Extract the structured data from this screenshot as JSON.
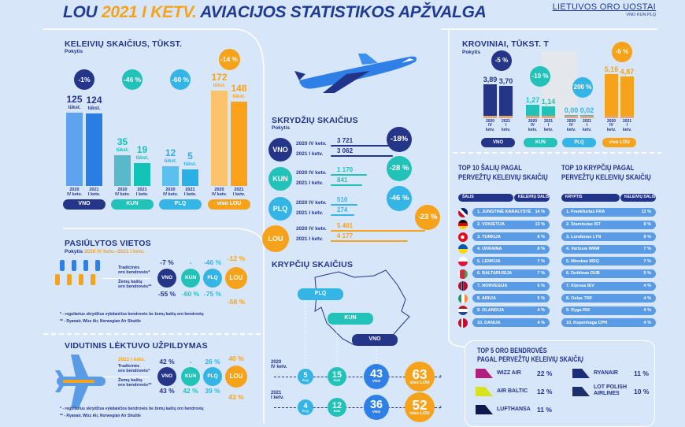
{
  "header": {
    "title_part1": "LOU",
    "title_part2": "2021 I KETV.",
    "title_part3": "AVIACIJOS STATISTIKOS APŽVALGA",
    "logo_text": "LIETUVOS ORO UOSTAI",
    "logo_sub": "VNO KUN PLQ"
  },
  "colors": {
    "vno": "#253689",
    "kun": "#22c2b8",
    "plq": "#35b4e6",
    "lou": "#f7a21b",
    "vno_bright": "#2f80e6"
  },
  "passengers": {
    "title": "KELEIVIŲ SKAIČIUS, TŪKST.",
    "subtitle": "Pokytis",
    "unit": "tūkst.",
    "year_a": "2020",
    "q_a": "IV ketv.",
    "year_b": "2021",
    "q_b": "I ketv.",
    "airports": [
      {
        "label": "VNO",
        "change": "-1%",
        "v2020": 125,
        "v2021": 124
      },
      {
        "label": "KUN",
        "change": "-46 %",
        "v2020": 35,
        "v2021": 19
      },
      {
        "label": "PLQ",
        "change": "-60 %",
        "v2020": 12,
        "v2021": 5
      },
      {
        "label": "viso LOU",
        "change": "-14 %",
        "v2020": 172,
        "v2021": 148
      }
    ]
  },
  "cargo": {
    "title": "KROVINIAI, TŪKST. T",
    "subtitle": "Pokytis",
    "year_a": "2020",
    "q_a": "IV",
    "k_a": "ketv.",
    "year_b": "2021",
    "q_b": "I",
    "k_b": "ketv.",
    "airports": [
      {
        "label": "VNO",
        "change": "-5 %",
        "v2020": "3,89",
        "v2021": "3,70",
        "n2020": 3.89,
        "n2021": 3.7
      },
      {
        "label": "KUN",
        "change": "-10 %",
        "v2020": "1,27",
        "v2021": "1,14",
        "n2020": 1.27,
        "n2021": 1.14
      },
      {
        "label": "PLQ",
        "change": "200 %",
        "v2020": "0,00",
        "v2021": "0,02",
        "n2020": 0.0,
        "n2021": 0.02
      },
      {
        "label": "viso LOU",
        "change": "-6 %",
        "v2020": "5,16",
        "v2021": "4,87",
        "n2020": 5.16,
        "n2021": 4.87
      }
    ]
  },
  "seats": {
    "title": "PASIŪLYTOS VIETOS",
    "subtitle_prefix": "Pokytis",
    "subtitle_period": "2020 IV ketv.–2021 I ketv.",
    "label_trad_1": "Tradicinės",
    "label_trad_2": "oro bendrovės*",
    "label_low_1": "Žemų kaštų",
    "label_low_2": "oro bendrovės**",
    "airports": [
      {
        "code": "VNO",
        "traditional": "-7 %",
        "lowcost": "-55 %"
      },
      {
        "code": "KUN",
        "traditional": "-",
        "lowcost": "-60 %"
      },
      {
        "code": "PLQ",
        "traditional": "-46 %",
        "lowcost": "-75 %"
      },
      {
        "code": "LOU",
        "traditional": "-12 %",
        "lowcost": "-58 %"
      }
    ],
    "footnote1": "* - reguliarius skrydžius vykdančios bendrovės be žemų kaštų oro bendrovių",
    "footnote2": "** - Ryanair, Wizz Air, Norwegian Air Shuttle"
  },
  "load_factor": {
    "title": "VIDUTINIS LĖKTUVO UŽPILDYMAS",
    "period": "2021 I ketv.",
    "label_trad_1": "Tradicinės",
    "label_trad_2": "oro bendrovės*",
    "label_low_1": "Žemų kaštų",
    "label_low_2": "oro bendrovės**",
    "airports": [
      {
        "code": "VNO",
        "traditional": "42 %",
        "lowcost": "43 %"
      },
      {
        "code": "KUN",
        "traditional": "-",
        "lowcost": "42 %"
      },
      {
        "code": "PLQ",
        "traditional": "26 %",
        "lowcost": "39 %"
      },
      {
        "code": "LOU",
        "traditional": "40 %",
        "lowcost": "43 %"
      }
    ],
    "footnote1": "* - reguliarius skrydžius vykdančios bendrovės be žemų kaštų oro bendrovių",
    "footnote2": "** - Ryanair, Wizz Air, Norwegian Air Shuttle"
  },
  "flights": {
    "title": "SKRYDŽIŲ SKAIČIUS",
    "subtitle": "Pokytis",
    "label_a": "2020 IV ketv.",
    "label_b": "2021 I ketv.",
    "airports": [
      {
        "code": "VNO",
        "v2020": "3 721",
        "v2021": "3 062",
        "n2020": 3721,
        "n2021": 3062,
        "change": "-18%"
      },
      {
        "code": "KUN",
        "v2020": "1 170",
        "v2021": "841",
        "n2020": 1170,
        "n2021": 841,
        "change": "-28 %"
      },
      {
        "code": "PLQ",
        "v2020": "510",
        "v2021": "274",
        "n2020": 510,
        "n2021": 274,
        "change": "-46 %"
      },
      {
        "code": "LOU",
        "v2020": "5 401",
        "v2021": "4 177",
        "n2020": 5401,
        "n2021": 4177,
        "change": "-23 %"
      }
    ]
  },
  "destinations": {
    "title": "KRYPČIŲ SKAIČIUS",
    "map_labels": [
      "PLQ",
      "KUN",
      "VNO"
    ],
    "year_a": "2020",
    "q_a": "IV ketv.",
    "year_b": "2021",
    "q_b": "I ketv.",
    "row_a": [
      {
        "n": "5",
        "l": "PLQ"
      },
      {
        "n": "15",
        "l": "KUN"
      },
      {
        "n": "43",
        "l": "VNO"
      },
      {
        "n": "63",
        "l": "viso LOU"
      }
    ],
    "row_b": [
      {
        "n": "4",
        "l": "PLQ"
      },
      {
        "n": "12",
        "l": "KUN"
      },
      {
        "n": "36",
        "l": "VNO"
      },
      {
        "n": "52",
        "l": "viso LOU"
      }
    ]
  },
  "top_countries": {
    "title1": "TOP 10 ŠALIŲ PAGAL",
    "title2": "PERVEŽTŲ KELEIVIŲ SKAIČIŲ",
    "col1": "ŠALIS",
    "col2": "KELEIVIŲ DALIS",
    "rows": [
      {
        "name": "1. JUNGTINĖ KARALYSTĖ",
        "share": "14 %",
        "flag": "uk"
      },
      {
        "name": "2. VOKIETIJA",
        "share": "13 %",
        "flag": "de"
      },
      {
        "name": "3. TURKIJA",
        "share": "8 %",
        "flag": "tr"
      },
      {
        "name": "4. UKRAINA",
        "share": "8 %",
        "flag": "ua"
      },
      {
        "name": "5. LENKIJA",
        "share": "7 %",
        "flag": "pl"
      },
      {
        "name": "6. BALTARUSIJA",
        "share": "7 %",
        "flag": "by"
      },
      {
        "name": "7. NORVEGIJA",
        "share": "6 %",
        "flag": "no"
      },
      {
        "name": "8. AIRIJA",
        "share": "5 %",
        "flag": "ie"
      },
      {
        "name": "9. OLANDIJA",
        "share": "4 %",
        "flag": "nl"
      },
      {
        "name": "10. DANIJA",
        "share": "4 %",
        "flag": "dk"
      }
    ]
  },
  "top_destinations": {
    "title1": "TOP 10 KRYPČIŲ PAGAL",
    "title2": "PERVEŽTŲ KELEIVIŲ SKAIČIŲ",
    "col1": "KRYPTIS",
    "col2": "KELEIVIŲ DALIS",
    "rows": [
      {
        "name": "1. Frankfurtas FRA",
        "share": "11 %"
      },
      {
        "name": "2. Stambulas IST",
        "share": "8 %"
      },
      {
        "name": "3. Londonas LTN",
        "share": "8 %"
      },
      {
        "name": "4. Varšuva WAW",
        "share": "7 %"
      },
      {
        "name": "5. Minskas MSQ",
        "share": "7 %"
      },
      {
        "name": "6. Dublinas DUB",
        "share": "5 %"
      },
      {
        "name": "7. Kijevas IEV",
        "share": "4 %"
      },
      {
        "name": "8. Oslas TRF",
        "share": "4 %"
      },
      {
        "name": "9. Ryga RIX",
        "share": "4 %"
      },
      {
        "name": "10. Kopenhaga CPH",
        "share": "4 %"
      }
    ]
  },
  "top_airlines": {
    "title1": "TOP 5 ORO BENDROVĖS",
    "title2": "PAGAL PERVEŽTŲ KELEIVIŲ SKAIČIŲ",
    "items": [
      {
        "name": "WIZZ AIR",
        "share": "22 %",
        "tail": "#b0207e"
      },
      {
        "name": "AIR BALTIC",
        "share": "12 %",
        "tail": "#d7e31c"
      },
      {
        "name": "LUFTHANSA",
        "share": "11 %",
        "tail": "#0b1a4a"
      },
      {
        "name": "RYANAIR",
        "share": "11 %",
        "tail": "#1b2f78"
      },
      {
        "name": "LOT POLISH AIRLINES",
        "share": "10 %",
        "tail": "#1f2f6b"
      }
    ]
  }
}
